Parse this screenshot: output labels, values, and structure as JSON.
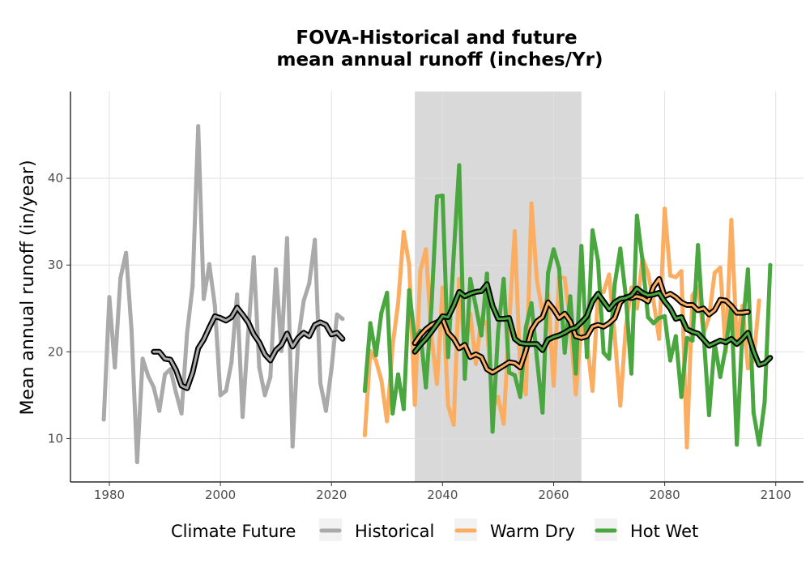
{
  "chart_data": {
    "type": "line",
    "title_lines": [
      "FOVA-Historical and future",
      "mean annual runoff (inches/Yr)"
    ],
    "xlabel": "",
    "ylabel": "Mean annual runoff (in/year)",
    "xlim": [
      1973,
      2105
    ],
    "ylim": [
      5,
      50
    ],
    "x_ticks": [
      1980,
      2000,
      2020,
      2040,
      2060,
      2080,
      2100
    ],
    "y_ticks": [
      10,
      20,
      30,
      40
    ],
    "grid": true,
    "shaded_period": [
      2035,
      2065
    ],
    "legend": {
      "title": "Climate Future",
      "position": "bottom",
      "items": [
        {
          "label": "Historical",
          "color": "#aaaaaa"
        },
        {
          "label": "Warm Dry",
          "color": "#fbae61"
        },
        {
          "label": "Hot Wet",
          "color": "#4aa63f"
        }
      ]
    },
    "series": [
      {
        "name": "Historical",
        "color": "#aaaaaa",
        "x_start": 1979,
        "values": [
          12.2,
          26.3,
          18.2,
          28.5,
          31.4,
          22.5,
          7.3,
          19.2,
          17.2,
          15.9,
          13.2,
          17.4,
          18.0,
          15.3,
          12.9,
          22.2,
          27.6,
          46.0,
          26.1,
          30.1,
          25.3,
          15.0,
          15.5,
          18.8,
          26.6,
          12.5,
          22.2,
          30.9,
          18.2,
          15.0,
          17.1,
          29.5,
          20.1,
          33.1,
          9.1,
          21.4,
          25.9,
          27.9,
          32.9,
          16.4,
          13.2,
          18.0,
          24.3,
          23.8
        ],
        "smooth": {
          "x_start": 1988,
          "values": [
            20.0,
            20.0,
            19.2,
            19.1,
            17.9,
            16.1,
            15.8,
            17.6,
            20.4,
            21.4,
            22.8,
            24.1,
            23.9,
            23.6,
            24.0,
            25.1,
            24.3,
            23.4,
            22.0,
            21.1,
            19.7,
            19.0,
            20.2,
            20.8,
            22.1,
            20.6,
            21.6,
            22.2,
            21.8,
            23.1,
            23.4,
            23.1,
            22.0,
            22.2,
            21.5
          ]
        }
      },
      {
        "name": "Warm Dry",
        "color": "#fbae61",
        "x_start": 2026,
        "values": [
          10.4,
          20.1,
          19.0,
          16.7,
          12.0,
          20.7,
          25.6,
          33.8,
          30.0,
          13.9,
          29.3,
          31.8,
          21.8,
          16.3,
          27.4,
          13.8,
          11.6,
          28.4,
          19.4,
          24.4,
          18.6,
          23.9,
          23.1,
          13.4,
          14.8,
          11.7,
          23.3,
          33.9,
          17.6,
          15.1,
          37.1,
          28.2,
          24.5,
          26.6,
          16.1,
          28.6,
          28.5,
          23.3,
          15.1,
          23.2,
          21.2,
          15.5,
          26.7,
          26.9,
          28.9,
          21.8,
          13.8,
          22.8,
          27.4,
          25.0,
          30.8,
          29.1,
          25.8,
          21.5,
          36.5,
          28.8,
          28.6,
          29.3,
          9.0,
          26.5,
          27.5,
          22.1,
          24.0,
          29.1,
          29.7,
          20.0,
          35.2,
          20.8,
          25.3,
          18.1,
          19.0,
          25.9
        ],
        "smooth": {
          "x_start": 2035,
          "values": [
            21.0,
            21.9,
            22.6,
            23.1,
            23.4,
            23.8,
            22.2,
            21.5,
            20.4,
            20.8,
            19.4,
            19.7,
            19.4,
            18.0,
            17.6,
            18.0,
            18.4,
            18.8,
            18.7,
            18.2,
            20.1,
            22.5,
            23.5,
            24.0,
            25.7,
            24.9,
            23.9,
            24.4,
            23.5,
            21.8,
            21.6,
            21.8,
            22.9,
            23.1,
            22.9,
            23.3,
            23.9,
            25.7,
            26.3,
            26.2,
            26.4,
            26.2,
            25.8,
            27.5,
            28.4,
            26.4,
            26.7,
            26.3,
            25.7,
            25.4,
            25.4,
            24.8,
            25.0,
            24.3,
            24.8,
            26.0,
            25.9,
            25.3,
            24.5,
            24.5,
            24.6
          ]
        }
      },
      {
        "name": "Hot Wet",
        "color": "#4aa63f",
        "x_start": 2026,
        "values": [
          15.5,
          23.3,
          19.6,
          24.5,
          26.8,
          12.9,
          17.4,
          13.4,
          27.1,
          21.5,
          22.4,
          15.9,
          25.1,
          37.9,
          38.0,
          19.4,
          31.1,
          41.5,
          16.9,
          28.4,
          25.2,
          21.9,
          29.0,
          10.8,
          22.3,
          28.4,
          17.6,
          17.3,
          14.8,
          22.8,
          25.6,
          19.2,
          13.0,
          29.1,
          31.8,
          29.6,
          19.9,
          26.4,
          17.5,
          32.2,
          19.4,
          34.0,
          30.5,
          19.9,
          19.2,
          27.8,
          31.9,
          26.4,
          17.5,
          35.7,
          30.5,
          24.0,
          23.3,
          23.9,
          24.1,
          19.0,
          21.8,
          14.8,
          21.6,
          21.3,
          32.3,
          22.1,
          12.7,
          21.0,
          17.1,
          20.5,
          25.2,
          9.3,
          22.5,
          29.5,
          13.0,
          9.3,
          14.2,
          30.0
        ],
        "smooth": {
          "x_start": 2035,
          "values": [
            20.0,
            20.8,
            21.5,
            22.3,
            23.2,
            24.1,
            24.0,
            25.3,
            26.9,
            26.4,
            26.7,
            26.9,
            27.0,
            27.8,
            25.3,
            23.8,
            23.8,
            23.9,
            21.5,
            21.0,
            20.9,
            20.9,
            20.9,
            20.2,
            21.4,
            21.7,
            21.9,
            22.2,
            22.6,
            22.8,
            23.4,
            24.1,
            25.8,
            26.7,
            25.8,
            24.9,
            25.7,
            26.1,
            26.2,
            26.5,
            27.3,
            26.8,
            26.5,
            26.6,
            26.8,
            25.8,
            25.0,
            23.8,
            24.0,
            22.6,
            22.3,
            22.1,
            21.4,
            20.7,
            21.0,
            21.3,
            21.1,
            21.5,
            20.9,
            21.5,
            22.2,
            20.1,
            18.5,
            18.7,
            19.3
          ]
        }
      }
    ]
  }
}
